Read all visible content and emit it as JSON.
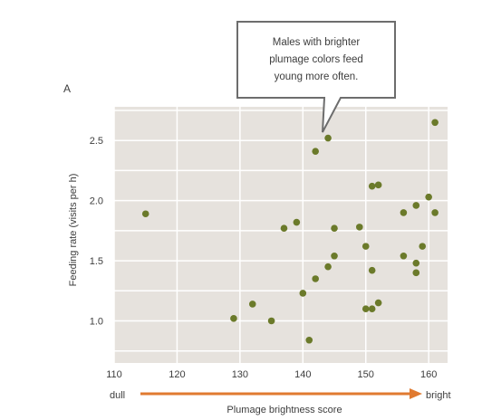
{
  "chart_data": {
    "type": "scatter",
    "panel_label": "A",
    "title": "",
    "xlabel": "Plumage brightness score",
    "ylabel": "Feeding rate (visits per h)",
    "xlim": [
      110,
      163
    ],
    "ylim": [
      0.65,
      2.78
    ],
    "x_ticks": [
      110,
      120,
      130,
      140,
      150,
      160
    ],
    "y_ticks": [
      1.0,
      1.5,
      2.0,
      2.5
    ],
    "grid": true,
    "x_axis_start_label": "dull",
    "x_axis_end_label": "bright",
    "annotation": [
      "Males with brighter",
      "plumage colors feed",
      "young more often."
    ],
    "colors": {
      "plot_background": "#e6e2dd",
      "grid": "#ffffff",
      "point": "#6b7a2a",
      "arrow": "#e07a30",
      "callout_border": "#6d6d6d"
    },
    "points": [
      {
        "x": 115,
        "y": 1.89
      },
      {
        "x": 129,
        "y": 1.02
      },
      {
        "x": 132,
        "y": 1.14
      },
      {
        "x": 135,
        "y": 1.0
      },
      {
        "x": 137,
        "y": 1.77
      },
      {
        "x": 139,
        "y": 1.82
      },
      {
        "x": 140,
        "y": 1.23
      },
      {
        "x": 141,
        "y": 0.84
      },
      {
        "x": 142,
        "y": 1.35
      },
      {
        "x": 142,
        "y": 2.41
      },
      {
        "x": 144,
        "y": 1.45
      },
      {
        "x": 144,
        "y": 2.52
      },
      {
        "x": 145,
        "y": 1.54
      },
      {
        "x": 145,
        "y": 1.77
      },
      {
        "x": 149,
        "y": 1.78
      },
      {
        "x": 150,
        "y": 1.62
      },
      {
        "x": 150,
        "y": 1.1
      },
      {
        "x": 151,
        "y": 1.1
      },
      {
        "x": 151,
        "y": 1.42
      },
      {
        "x": 151,
        "y": 2.12
      },
      {
        "x": 152,
        "y": 2.13
      },
      {
        "x": 152,
        "y": 1.15
      },
      {
        "x": 156,
        "y": 1.9
      },
      {
        "x": 156,
        "y": 1.54
      },
      {
        "x": 158,
        "y": 1.96
      },
      {
        "x": 158,
        "y": 1.48
      },
      {
        "x": 158,
        "y": 1.4
      },
      {
        "x": 159,
        "y": 1.62
      },
      {
        "x": 160,
        "y": 2.03
      },
      {
        "x": 161,
        "y": 1.9
      },
      {
        "x": 161,
        "y": 2.65
      }
    ]
  }
}
